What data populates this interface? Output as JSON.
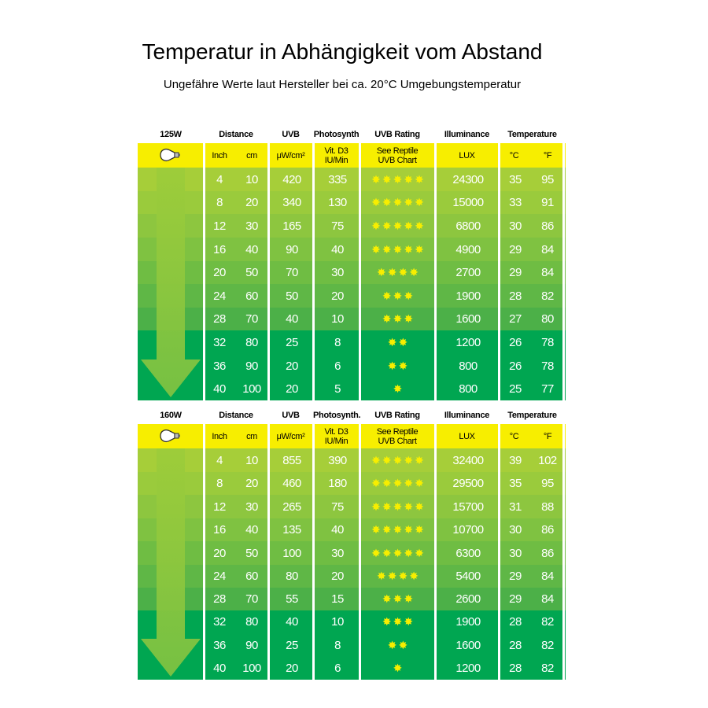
{
  "title": "Temperatur in Abhängigkeit vom Abstand",
  "subtitle": "Ungefähre Werte laut Hersteller bei ca. 20°C Umgebungstemperatur",
  "columns": {
    "distance": "Distance",
    "uvb": "UVB",
    "uvb_rating": "UVB Rating",
    "illuminance": "Illuminance",
    "temperature": "Temperature",
    "inch": "Inch",
    "cm": "cm",
    "uvb_unit": "μW/cm²",
    "vitd3_line1": "Vit. D3",
    "vitd3_line2": "IU/Min",
    "rating_line1": "See Reptile",
    "rating_line2": "UVB Chart",
    "lux": "LUX",
    "celsius": "°C",
    "fahrenheit": "°F"
  },
  "tables": [
    {
      "wattage": "125W",
      "photosynth_label": "Photosynth",
      "rows": [
        {
          "inch": "4",
          "cm": "10",
          "uvb": "420",
          "d3": "335",
          "stars": 5,
          "lux": "24300",
          "c": "35",
          "f": "95"
        },
        {
          "inch": "8",
          "cm": "20",
          "uvb": "340",
          "d3": "130",
          "stars": 5,
          "lux": "15000",
          "c": "33",
          "f": "91"
        },
        {
          "inch": "12",
          "cm": "30",
          "uvb": "165",
          "d3": "75",
          "stars": 5,
          "lux": "6800",
          "c": "30",
          "f": "86"
        },
        {
          "inch": "16",
          "cm": "40",
          "uvb": "90",
          "d3": "40",
          "stars": 5,
          "lux": "4900",
          "c": "29",
          "f": "84"
        },
        {
          "inch": "20",
          "cm": "50",
          "uvb": "70",
          "d3": "30",
          "stars": 4,
          "lux": "2700",
          "c": "29",
          "f": "84"
        },
        {
          "inch": "24",
          "cm": "60",
          "uvb": "50",
          "d3": "20",
          "stars": 3,
          "lux": "1900",
          "c": "28",
          "f": "82"
        },
        {
          "inch": "28",
          "cm": "70",
          "uvb": "40",
          "d3": "10",
          "stars": 3,
          "lux": "1600",
          "c": "27",
          "f": "80"
        },
        {
          "inch": "32",
          "cm": "80",
          "uvb": "25",
          "d3": "8",
          "stars": 2,
          "lux": "1200",
          "c": "26",
          "f": "78"
        },
        {
          "inch": "36",
          "cm": "90",
          "uvb": "20",
          "d3": "6",
          "stars": 2,
          "lux": "800",
          "c": "26",
          "f": "78"
        },
        {
          "inch": "40",
          "cm": "100",
          "uvb": "20",
          "d3": "5",
          "stars": 1,
          "lux": "800",
          "c": "25",
          "f": "77"
        }
      ]
    },
    {
      "wattage": "160W",
      "photosynth_label": "Photosynth.",
      "rows": [
        {
          "inch": "4",
          "cm": "10",
          "uvb": "855",
          "d3": "390",
          "stars": 5,
          "lux": "32400",
          "c": "39",
          "f": "102"
        },
        {
          "inch": "8",
          "cm": "20",
          "uvb": "460",
          "d3": "180",
          "stars": 5,
          "lux": "29500",
          "c": "35",
          "f": "95"
        },
        {
          "inch": "12",
          "cm": "30",
          "uvb": "265",
          "d3": "75",
          "stars": 5,
          "lux": "15700",
          "c": "31",
          "f": "88"
        },
        {
          "inch": "16",
          "cm": "40",
          "uvb": "135",
          "d3": "40",
          "stars": 5,
          "lux": "10700",
          "c": "30",
          "f": "86"
        },
        {
          "inch": "20",
          "cm": "50",
          "uvb": "100",
          "d3": "30",
          "stars": 5,
          "lux": "6300",
          "c": "30",
          "f": "86"
        },
        {
          "inch": "24",
          "cm": "60",
          "uvb": "80",
          "d3": "20",
          "stars": 4,
          "lux": "5400",
          "c": "29",
          "f": "84"
        },
        {
          "inch": "28",
          "cm": "70",
          "uvb": "55",
          "d3": "15",
          "stars": 3,
          "lux": "2600",
          "c": "29",
          "f": "84"
        },
        {
          "inch": "32",
          "cm": "80",
          "uvb": "40",
          "d3": "10",
          "stars": 3,
          "lux": "1900",
          "c": "28",
          "f": "82"
        },
        {
          "inch": "36",
          "cm": "90",
          "uvb": "25",
          "d3": "8",
          "stars": 2,
          "lux": "1600",
          "c": "28",
          "f": "82"
        },
        {
          "inch": "40",
          "cm": "100",
          "uvb": "20",
          "d3": "6",
          "stars": 1,
          "lux": "1200",
          "c": "28",
          "f": "82"
        }
      ]
    }
  ],
  "colors": {
    "header_yellow": "#f7ee00",
    "row_gradient": [
      "#a6ce39",
      "#9acb3c",
      "#8dc63f",
      "#7fc241",
      "#6fbd43",
      "#5fb746",
      "#4cb048",
      "#00a651",
      "#00a651",
      "#00a651"
    ],
    "arrow": "#8dc63f",
    "star": "#f7ee00"
  }
}
